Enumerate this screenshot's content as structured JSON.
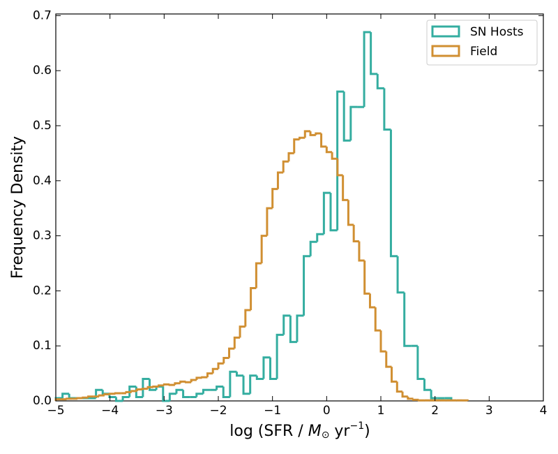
{
  "chart_data": {
    "type": "histogram",
    "xlabel": [
      "log (SFR / ",
      "M",
      "⊙",
      " yr",
      "−1",
      ")"
    ],
    "ylabel": "Frequency Density",
    "xlim": [
      -5,
      4
    ],
    "ylim": [
      0,
      0.703
    ],
    "xticks": [
      {
        "value": -5,
        "label": "−5"
      },
      {
        "value": -4,
        "label": "−4"
      },
      {
        "value": -3,
        "label": "−3"
      },
      {
        "value": -2,
        "label": "−2"
      },
      {
        "value": -1,
        "label": "−1"
      },
      0,
      1,
      2,
      3,
      4
    ],
    "yticks": [
      {
        "value": 0,
        "label": "0.0"
      },
      0.1,
      0.2,
      0.3,
      0.4,
      0.5,
      0.6,
      0.7
    ],
    "legend": "upper right",
    "series": [
      {
        "name": "SN Hosts",
        "color": "#34ada0",
        "bins": [
          -5,
          -4.876,
          -4.753,
          -4.629,
          -4.505,
          -4.381,
          -4.258,
          -4.134,
          -4.01,
          -3.886,
          -3.763,
          -3.639,
          -3.515,
          -3.392,
          -3.268,
          -3.144,
          -3.02,
          -2.897,
          -2.773,
          -2.649,
          -2.525,
          -2.402,
          -2.278,
          -2.154,
          -2.031,
          -1.907,
          -1.783,
          -1.659,
          -1.536,
          -1.412,
          -1.288,
          -1.164,
          -1.041,
          -0.917,
          -0.793,
          -0.669,
          -0.546,
          -0.422,
          -0.298,
          -0.175,
          -0.051,
          0.073,
          0.197,
          0.32,
          0.444,
          0.568,
          0.692,
          0.815,
          0.939,
          1.063,
          1.186,
          1.31,
          1.434,
          1.558,
          1.681,
          1.805,
          1.929,
          2.053,
          2.176,
          2.3
        ],
        "values": [
          0.005,
          0.013,
          0.005,
          0.005,
          0.005,
          0.005,
          0.02,
          0.013,
          0.007,
          0,
          0.007,
          0.026,
          0.007,
          0.04,
          0.02,
          0.026,
          0,
          0.013,
          0.02,
          0.007,
          0.007,
          0.013,
          0.02,
          0.02,
          0.026,
          0.007,
          0.053,
          0.046,
          0.013,
          0.046,
          0.04,
          0.079,
          0.04,
          0.12,
          0.155,
          0.107,
          0.155,
          0.263,
          0.289,
          0.303,
          0.378,
          0.31,
          0.562,
          0.473,
          0.534,
          0.534,
          0.67,
          0.594,
          0.568,
          0.493,
          0.263,
          0.197,
          0.1,
          0.1,
          0.04,
          0.02,
          0.005,
          0.005,
          0.005
        ]
      },
      {
        "name": "Field",
        "color": "#d08f32",
        "bins": [
          -5,
          -4.9,
          -4.8,
          -4.7,
          -4.6,
          -4.5,
          -4.4,
          -4.3,
          -4.2,
          -4.1,
          -4,
          -3.9,
          -3.8,
          -3.7,
          -3.6,
          -3.5,
          -3.4,
          -3.3,
          -3.2,
          -3.1,
          -3,
          -2.9,
          -2.8,
          -2.7,
          -2.6,
          -2.5,
          -2.4,
          -2.3,
          -2.2,
          -2.1,
          -2,
          -1.9,
          -1.8,
          -1.7,
          -1.6,
          -1.5,
          -1.4,
          -1.3,
          -1.2,
          -1.1,
          -1,
          -0.9,
          -0.8,
          -0.7,
          -0.6,
          -0.5,
          -0.4,
          -0.3,
          -0.2,
          -0.1,
          0,
          0.1,
          0.2,
          0.3,
          0.4,
          0.5,
          0.6,
          0.7,
          0.8,
          0.9,
          1,
          1.1,
          1.2,
          1.3,
          1.4,
          1.5,
          1.6,
          1.7,
          1.8,
          1.9,
          2,
          2.1,
          2.2,
          2.3,
          2.4,
          2.5,
          2.6
        ],
        "values": [
          0.003,
          0.003,
          0.004,
          0.004,
          0.005,
          0.006,
          0.008,
          0.008,
          0.01,
          0.012,
          0.013,
          0.014,
          0.014,
          0.016,
          0.018,
          0.021,
          0.022,
          0.025,
          0.026,
          0.028,
          0.03,
          0.029,
          0.032,
          0.035,
          0.034,
          0.038,
          0.042,
          0.043,
          0.05,
          0.058,
          0.068,
          0.078,
          0.095,
          0.115,
          0.135,
          0.165,
          0.205,
          0.25,
          0.3,
          0.35,
          0.385,
          0.415,
          0.435,
          0.45,
          0.475,
          0.478,
          0.49,
          0.483,
          0.486,
          0.462,
          0.452,
          0.44,
          0.41,
          0.365,
          0.32,
          0.29,
          0.255,
          0.195,
          0.17,
          0.128,
          0.09,
          0.062,
          0.035,
          0.017,
          0.008,
          0.004,
          0.002,
          0.001,
          0.001,
          0.001,
          0.001,
          0.001,
          0.001,
          0.001,
          0.001,
          0.001
        ]
      }
    ]
  }
}
